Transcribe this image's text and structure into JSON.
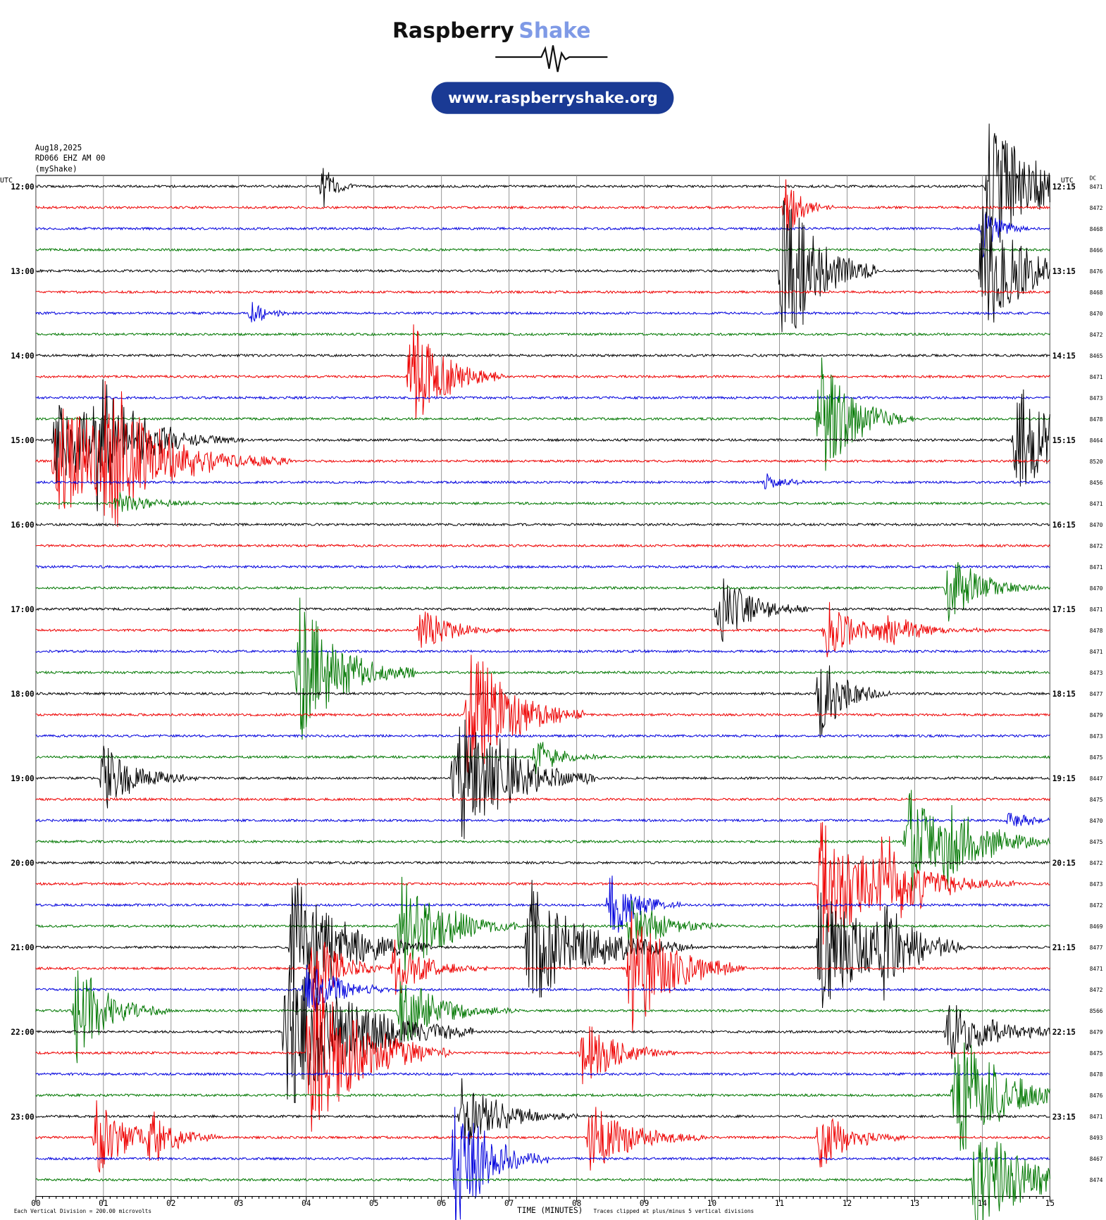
{
  "header": {
    "brand_a": "Raspberry",
    "brand_b": "Shake",
    "url": "www.raspberryshake.org"
  },
  "info": {
    "date": "Aug18,2025",
    "station": "RD066 EHZ AM 00",
    "source": "(myShake)"
  },
  "plot": {
    "utc_left": "UTC",
    "utc_right": "UTC",
    "dc_title": "DC",
    "left_labels": [
      "12:00",
      "13:00",
      "14:00",
      "15:00",
      "16:00",
      "17:00",
      "18:00",
      "19:00",
      "20:00",
      "21:00",
      "22:00",
      "23:00"
    ],
    "right_labels": [
      "12:15",
      "13:15",
      "14:15",
      "15:15",
      "16:15",
      "17:15",
      "18:15",
      "19:15",
      "20:15",
      "21:15",
      "22:15",
      "23:15"
    ],
    "dc": [
      "8471",
      "8472",
      "8468",
      "8466",
      "8476",
      "8468",
      "8470",
      "8472",
      "8465",
      "8471",
      "8473",
      "8478",
      "8464",
      "8520",
      "8456",
      "8471",
      "8470",
      "8472",
      "8471",
      "8470",
      "8471",
      "8478",
      "8471",
      "8473",
      "8477",
      "8479",
      "8473",
      "8475",
      "8447",
      "8475",
      "8470",
      "8475",
      "8472",
      "8473",
      "8472",
      "8469",
      "8477",
      "8471",
      "8472",
      "8566",
      "8479",
      "8475",
      "8478",
      "8476",
      "8471",
      "8493",
      "8467",
      "8474"
    ],
    "x_ticks": [
      "00",
      "01",
      "02",
      "03",
      "04",
      "05",
      "06",
      "07",
      "08",
      "09",
      "10",
      "11",
      "12",
      "13",
      "14",
      "15"
    ],
    "x_label": "TIME (MINUTES)",
    "division_note": "Each Vertical Division =  200.00 microvolts",
    "clip_note": "Traces clipped at plus/minus 5 vertical divisions"
  }
}
